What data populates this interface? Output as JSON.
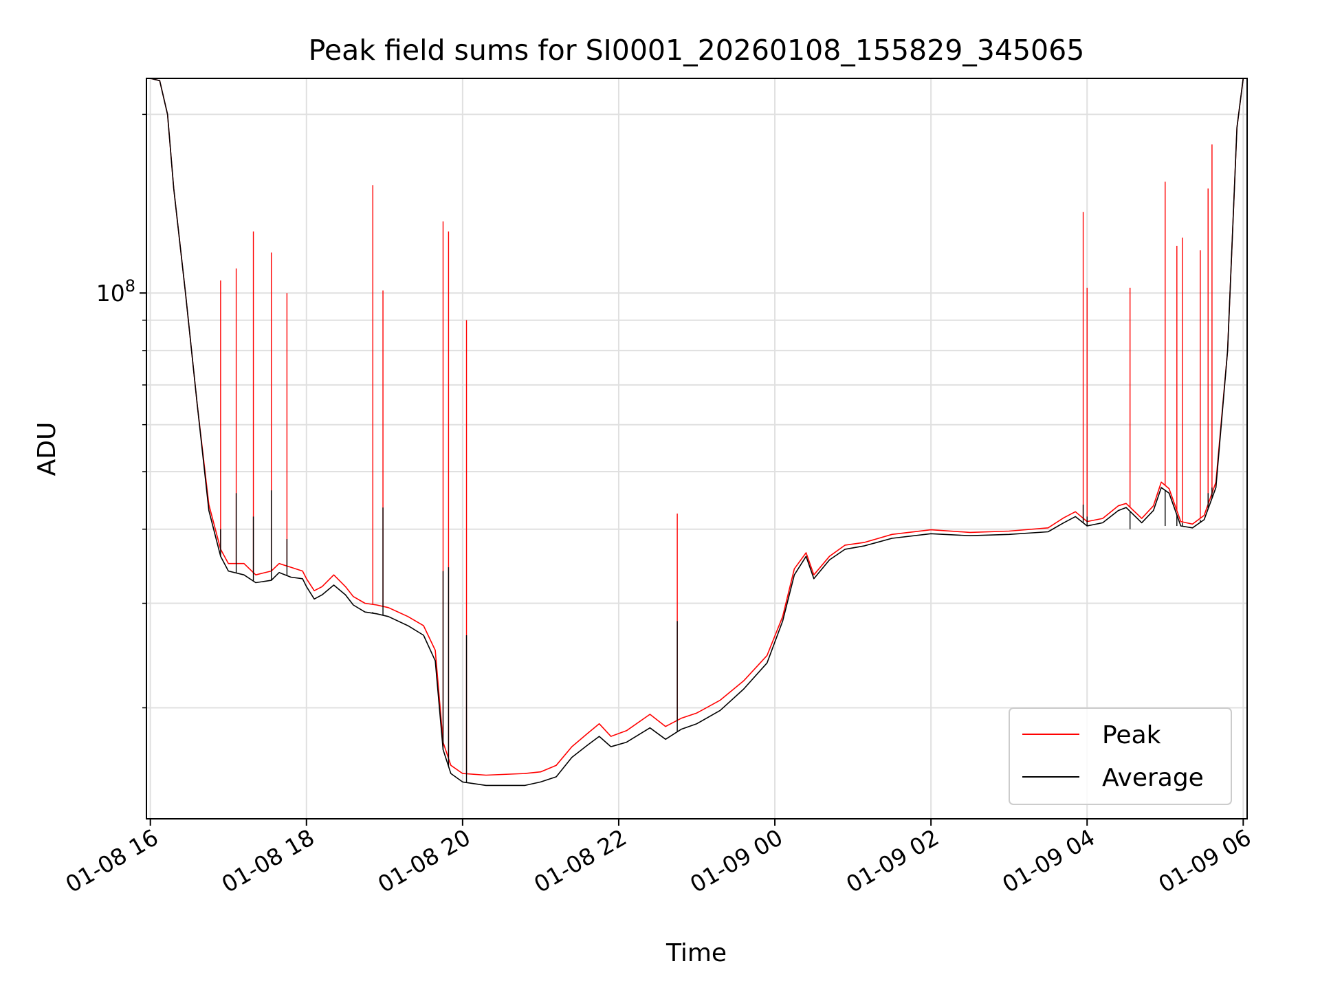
{
  "chart_data": {
    "type": "line",
    "title": "Peak field sums for SI0001_20260108_155829_345065",
    "xlabel": "Time",
    "ylabel": "ADU",
    "yscale": "log",
    "ylim": [
      13000000,
      230000000
    ],
    "xlim_hours": [
      -0.05,
      14.05
    ],
    "x_ticks": [
      {
        "h": 0,
        "label": "01-08 16"
      },
      {
        "h": 2,
        "label": "01-08 18"
      },
      {
        "h": 4,
        "label": "01-08 20"
      },
      {
        "h": 6,
        "label": "01-08 22"
      },
      {
        "h": 8,
        "label": "01-09 00"
      },
      {
        "h": 10,
        "label": "01-09 02"
      },
      {
        "h": 12,
        "label": "01-09 04"
      },
      {
        "h": 14,
        "label": "01-09 06"
      }
    ],
    "y_major_ticks": [
      {
        "value": 100000000,
        "base": "10",
        "exp": "8"
      }
    ],
    "y_minor_ticks": [
      20000000,
      30000000,
      40000000,
      50000000,
      60000000,
      70000000,
      80000000,
      90000000,
      200000000
    ],
    "grid": true,
    "legend_position": "lower right",
    "legend": [
      {
        "name": "Peak",
        "color": "#ff0000"
      },
      {
        "name": "Average",
        "color": "#000000"
      }
    ],
    "x_unit_note": "hours after 01-08 16:00",
    "series": [
      {
        "name": "Average",
        "color": "#000000",
        "points": [
          [
            0.0,
            230000000
          ],
          [
            0.12,
            228000000
          ],
          [
            0.22,
            200000000
          ],
          [
            0.3,
            150000000
          ],
          [
            0.45,
            100000000
          ],
          [
            0.6,
            65000000
          ],
          [
            0.75,
            43000000
          ],
          [
            0.9,
            36000000
          ],
          [
            1.0,
            34000000
          ],
          [
            1.2,
            33500000
          ],
          [
            1.35,
            32500000
          ],
          [
            1.55,
            32800000
          ],
          [
            1.65,
            33800000
          ],
          [
            1.8,
            33200000
          ],
          [
            1.95,
            33000000
          ],
          [
            2.0,
            32000000
          ],
          [
            2.1,
            30500000
          ],
          [
            2.2,
            31000000
          ],
          [
            2.35,
            32200000
          ],
          [
            2.5,
            31000000
          ],
          [
            2.6,
            29800000
          ],
          [
            2.75,
            29000000
          ],
          [
            2.9,
            28800000
          ],
          [
            3.05,
            28500000
          ],
          [
            3.3,
            27500000
          ],
          [
            3.5,
            26500000
          ],
          [
            3.65,
            24000000
          ],
          [
            3.75,
            17000000
          ],
          [
            3.85,
            15500000
          ],
          [
            4.0,
            15000000
          ],
          [
            4.3,
            14800000
          ],
          [
            4.8,
            14800000
          ],
          [
            5.0,
            15000000
          ],
          [
            5.2,
            15300000
          ],
          [
            5.4,
            16500000
          ],
          [
            5.6,
            17300000
          ],
          [
            5.75,
            17900000
          ],
          [
            5.9,
            17200000
          ],
          [
            6.1,
            17500000
          ],
          [
            6.4,
            18500000
          ],
          [
            6.6,
            17700000
          ],
          [
            6.8,
            18400000
          ],
          [
            7.0,
            18800000
          ],
          [
            7.3,
            19800000
          ],
          [
            7.6,
            21500000
          ],
          [
            7.9,
            23800000
          ],
          [
            8.1,
            28000000
          ],
          [
            8.25,
            33500000
          ],
          [
            8.4,
            36000000
          ],
          [
            8.5,
            33000000
          ],
          [
            8.7,
            35500000
          ],
          [
            8.9,
            37000000
          ],
          [
            9.15,
            37500000
          ],
          [
            9.5,
            38600000
          ],
          [
            10.0,
            39300000
          ],
          [
            10.5,
            39000000
          ],
          [
            11.0,
            39200000
          ],
          [
            11.5,
            39600000
          ],
          [
            11.7,
            41000000
          ],
          [
            11.85,
            42000000
          ],
          [
            12.0,
            40500000
          ],
          [
            12.2,
            41000000
          ],
          [
            12.4,
            43000000
          ],
          [
            12.5,
            43500000
          ],
          [
            12.7,
            41000000
          ],
          [
            12.85,
            43000000
          ],
          [
            12.95,
            47000000
          ],
          [
            13.05,
            46000000
          ],
          [
            13.2,
            40500000
          ],
          [
            13.35,
            40200000
          ],
          [
            13.5,
            41500000
          ],
          [
            13.65,
            47000000
          ],
          [
            13.8,
            80000000
          ],
          [
            13.92,
            190000000
          ],
          [
            14.0,
            230000000
          ]
        ]
      },
      {
        "name": "Peak",
        "color": "#ff0000",
        "points": [
          [
            0.0,
            230000000
          ],
          [
            0.12,
            228000000
          ],
          [
            0.22,
            200000000
          ],
          [
            0.3,
            150000000
          ],
          [
            0.45,
            100000000
          ],
          [
            0.6,
            65000000
          ],
          [
            0.75,
            44000000
          ],
          [
            0.9,
            37000000
          ],
          [
            1.0,
            35000000
          ],
          [
            1.2,
            35000000
          ],
          [
            1.35,
            33500000
          ],
          [
            1.55,
            34000000
          ],
          [
            1.65,
            35000000
          ],
          [
            1.8,
            34500000
          ],
          [
            1.95,
            34000000
          ],
          [
            2.0,
            33000000
          ],
          [
            2.1,
            31500000
          ],
          [
            2.2,
            32000000
          ],
          [
            2.35,
            33500000
          ],
          [
            2.5,
            32000000
          ],
          [
            2.6,
            30800000
          ],
          [
            2.75,
            30000000
          ],
          [
            2.9,
            29800000
          ],
          [
            3.05,
            29500000
          ],
          [
            3.3,
            28500000
          ],
          [
            3.5,
            27500000
          ],
          [
            3.65,
            25000000
          ],
          [
            3.75,
            17500000
          ],
          [
            3.85,
            16000000
          ],
          [
            4.0,
            15500000
          ],
          [
            4.3,
            15400000
          ],
          [
            4.8,
            15500000
          ],
          [
            5.0,
            15600000
          ],
          [
            5.2,
            16000000
          ],
          [
            5.4,
            17200000
          ],
          [
            5.6,
            18100000
          ],
          [
            5.75,
            18800000
          ],
          [
            5.9,
            17900000
          ],
          [
            6.1,
            18300000
          ],
          [
            6.4,
            19500000
          ],
          [
            6.6,
            18600000
          ],
          [
            6.8,
            19200000
          ],
          [
            7.0,
            19600000
          ],
          [
            7.3,
            20600000
          ],
          [
            7.6,
            22200000
          ],
          [
            7.9,
            24500000
          ],
          [
            8.1,
            28500000
          ],
          [
            8.25,
            34300000
          ],
          [
            8.4,
            36500000
          ],
          [
            8.5,
            33500000
          ],
          [
            8.7,
            36000000
          ],
          [
            8.9,
            37600000
          ],
          [
            9.15,
            38000000
          ],
          [
            9.5,
            39200000
          ],
          [
            10.0,
            39900000
          ],
          [
            10.5,
            39500000
          ],
          [
            11.0,
            39700000
          ],
          [
            11.5,
            40200000
          ],
          [
            11.7,
            41800000
          ],
          [
            11.85,
            42800000
          ],
          [
            12.0,
            41200000
          ],
          [
            12.2,
            41700000
          ],
          [
            12.4,
            43800000
          ],
          [
            12.5,
            44200000
          ],
          [
            12.7,
            41700000
          ],
          [
            12.85,
            43800000
          ],
          [
            12.95,
            48000000
          ],
          [
            13.05,
            46800000
          ],
          [
            13.2,
            41200000
          ],
          [
            13.35,
            40800000
          ],
          [
            13.5,
            42200000
          ],
          [
            13.65,
            48000000
          ],
          [
            13.8,
            80000000
          ],
          [
            13.92,
            190000000
          ],
          [
            14.0,
            230000000
          ]
        ]
      }
    ],
    "spikes": [
      {
        "x": 0.9,
        "peak": 105000000,
        "average": 40000000
      },
      {
        "x": 1.1,
        "peak": 110000000,
        "average": 46000000
      },
      {
        "x": 1.32,
        "peak": 127000000,
        "average": 42000000
      },
      {
        "x": 1.55,
        "peak": 117000000,
        "average": 46500000
      },
      {
        "x": 1.75,
        "peak": 100000000,
        "average": 38500000
      },
      {
        "x": 2.85,
        "peak": 152000000,
        "average": 29000000
      },
      {
        "x": 2.98,
        "peak": 101000000,
        "average": 43500000
      },
      {
        "x": 3.75,
        "peak": 132000000,
        "average": 34000000
      },
      {
        "x": 3.82,
        "peak": 127000000,
        "average": 34500000
      },
      {
        "x": 4.05,
        "peak": 90000000,
        "average": 26500000
      },
      {
        "x": 6.75,
        "peak": 42500000,
        "average": 28000000
      },
      {
        "x": 11.95,
        "peak": 137000000,
        "average": 44000000
      },
      {
        "x": 12.0,
        "peak": 102000000,
        "average": 42000000
      },
      {
        "x": 12.55,
        "peak": 102000000,
        "average": 40000000
      },
      {
        "x": 13.0,
        "peak": 154000000,
        "average": 40500000
      },
      {
        "x": 13.15,
        "peak": 120000000,
        "average": 40500000
      },
      {
        "x": 13.22,
        "peak": 124000000,
        "average": 41000000
      },
      {
        "x": 13.45,
        "peak": 118000000,
        "average": 41500000
      },
      {
        "x": 13.55,
        "peak": 150000000,
        "average": 46000000
      },
      {
        "x": 13.6,
        "peak": 178000000,
        "average": 47000000
      }
    ]
  }
}
